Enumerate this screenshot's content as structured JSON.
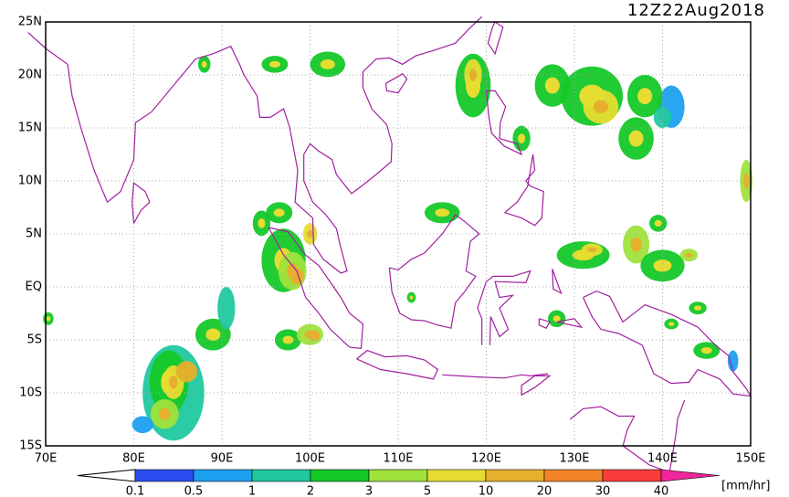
{
  "title": "12Z22Aug2018",
  "lat_labels": [
    "25N",
    "20N",
    "15N",
    "10N",
    "5N",
    "EQ",
    "5S",
    "10S",
    "15S"
  ],
  "lon_labels": [
    "70E",
    "80E",
    "90E",
    "100E",
    "110E",
    "120E",
    "130E",
    "140E",
    "150E"
  ],
  "colorbar": {
    "labels": [
      "0.1",
      "0.5",
      "1",
      "2",
      "3",
      "5",
      "10",
      "20",
      "30",
      "40"
    ],
    "under_color": "#ffffff",
    "colors": [
      "#2a4cf0",
      "#1ea0f0",
      "#20c8a0",
      "#14c828",
      "#a0e23c",
      "#e6dc32",
      "#e6af2d",
      "#f08228",
      "#fa3c3c"
    ],
    "over_color": "#f0259b",
    "unit": "[mm/hr]"
  }
}
